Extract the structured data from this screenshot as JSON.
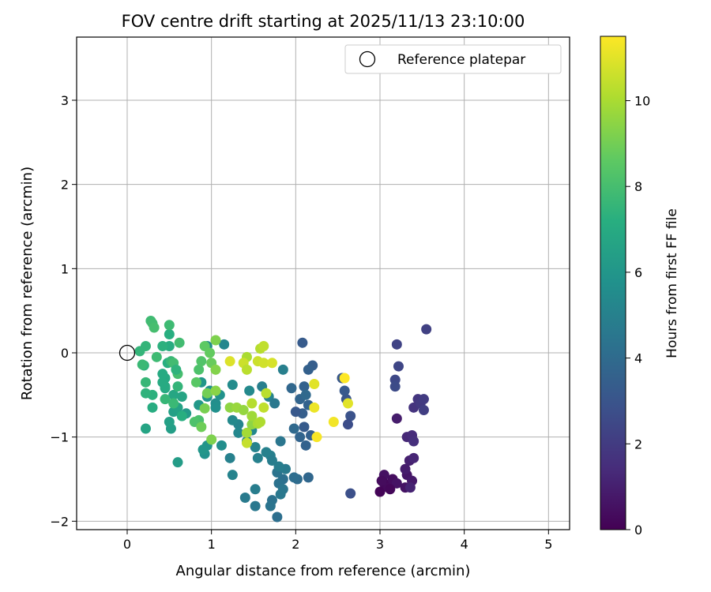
{
  "chart_data": {
    "type": "scatter",
    "title": "FOV centre drift starting at 2025/11/13 23:10:00",
    "xlabel": "Angular distance from reference (arcmin)",
    "ylabel": "Rotation from reference (arcmin)",
    "xlim": [
      -0.6,
      5.25
    ],
    "ylim": [
      -2.1,
      3.75
    ],
    "xticks": [
      0,
      1,
      2,
      3,
      4,
      5
    ],
    "yticks": [
      -2,
      -1,
      0,
      1,
      2,
      3
    ],
    "grid": true,
    "legend": {
      "placement": "top-right",
      "entries": [
        "Reference platepar"
      ]
    },
    "reference_point": {
      "x": 0,
      "y": 0
    },
    "colorbar": {
      "label": "Hours from first FF file",
      "colormap": "viridis",
      "range": [
        0,
        11.5
      ],
      "ticks": [
        0,
        2,
        4,
        6,
        8,
        10
      ]
    },
    "points": [
      [
        3.0,
        -1.65,
        0.1
      ],
      [
        3.05,
        -1.55,
        0.2
      ],
      [
        3.1,
        -1.6,
        0.3
      ],
      [
        3.15,
        -1.5,
        0.4
      ],
      [
        3.05,
        -1.45,
        0.5
      ],
      [
        3.2,
        -1.55,
        0.6
      ],
      [
        3.12,
        -1.62,
        0.2
      ],
      [
        3.02,
        -1.52,
        0.35
      ],
      [
        3.3,
        -1.6,
        0.6
      ],
      [
        3.32,
        -1.45,
        0.7
      ],
      [
        3.38,
        -1.52,
        0.8
      ],
      [
        3.3,
        -1.38,
        0.9
      ],
      [
        3.35,
        -1.28,
        1.0
      ],
      [
        3.36,
        -1.6,
        1.1
      ],
      [
        3.4,
        -1.25,
        1.2
      ],
      [
        3.32,
        -1.0,
        1.3
      ],
      [
        3.38,
        -0.98,
        1.4
      ],
      [
        3.4,
        -1.05,
        1.5
      ],
      [
        3.2,
        -0.78,
        0.9
      ],
      [
        3.4,
        -0.65,
        1.7
      ],
      [
        3.45,
        -0.55,
        1.8
      ],
      [
        3.48,
        -0.6,
        1.9
      ],
      [
        3.52,
        -0.55,
        2.0
      ],
      [
        3.52,
        -0.68,
        2.1
      ],
      [
        3.55,
        0.28,
        2.2
      ],
      [
        3.2,
        0.1,
        2.3
      ],
      [
        3.22,
        -0.16,
        2.4
      ],
      [
        3.18,
        -0.32,
        2.5
      ],
      [
        3.18,
        -0.4,
        2.6
      ],
      [
        2.65,
        -1.67,
        2.8
      ],
      [
        2.65,
        -0.75,
        2.9
      ],
      [
        2.6,
        -0.55,
        3.0
      ],
      [
        2.62,
        -0.85,
        2.7
      ],
      [
        2.55,
        -0.3,
        3.1
      ],
      [
        2.58,
        -0.45,
        3.2
      ],
      [
        2.08,
        0.12,
        3.3
      ],
      [
        2.2,
        -0.15,
        3.4
      ],
      [
        2.15,
        -0.2,
        3.5
      ],
      [
        2.1,
        -0.4,
        3.6
      ],
      [
        2.05,
        -0.55,
        3.7
      ],
      [
        1.95,
        -0.42,
        3.8
      ],
      [
        2.12,
        -0.5,
        3.9
      ],
      [
        2.15,
        -0.62,
        3.6
      ],
      [
        2.08,
        -0.72,
        3.4
      ],
      [
        2.0,
        -0.7,
        3.2
      ],
      [
        2.18,
        -0.98,
        3.5
      ],
      [
        2.1,
        -0.88,
        3.3
      ],
      [
        2.05,
        -1.0,
        3.7
      ],
      [
        1.98,
        -0.9,
        3.9
      ],
      [
        2.12,
        -1.1,
        3.6
      ],
      [
        2.15,
        -1.48,
        3.8
      ],
      [
        2.02,
        -1.5,
        4.0
      ],
      [
        1.98,
        -1.48,
        4.1
      ],
      [
        1.85,
        -1.5,
        4.2
      ],
      [
        1.8,
        -1.55,
        4.3
      ],
      [
        1.78,
        -1.42,
        4.4
      ],
      [
        1.85,
        -1.62,
        4.5
      ],
      [
        1.82,
        -1.68,
        4.6
      ],
      [
        1.88,
        -1.38,
        4.7
      ],
      [
        1.82,
        -1.05,
        4.5
      ],
      [
        1.8,
        -1.35,
        4.8
      ],
      [
        1.7,
        -1.22,
        4.9
      ],
      [
        1.65,
        -1.18,
        5.0
      ],
      [
        1.72,
        -1.28,
        4.8
      ],
      [
        1.72,
        -1.75,
        4.3
      ],
      [
        1.78,
        -1.95,
        4.2
      ],
      [
        1.7,
        -1.82,
        4.4
      ],
      [
        1.52,
        -1.82,
        4.6
      ],
      [
        1.52,
        -1.62,
        4.8
      ],
      [
        1.4,
        -1.72,
        4.7
      ],
      [
        1.55,
        -1.25,
        5.0
      ],
      [
        1.52,
        -1.12,
        5.1
      ],
      [
        1.42,
        -1.05,
        5.2
      ],
      [
        1.48,
        -0.92,
        5.3
      ],
      [
        1.6,
        -0.4,
        4.9
      ],
      [
        1.68,
        -0.52,
        5.1
      ],
      [
        1.75,
        -0.6,
        4.6
      ],
      [
        1.85,
        -0.2,
        4.9
      ],
      [
        1.45,
        -0.45,
        5.4
      ],
      [
        1.32,
        -0.85,
        5.2
      ],
      [
        1.32,
        -0.95,
        5.3
      ],
      [
        1.25,
        -0.8,
        5.4
      ],
      [
        1.22,
        -1.25,
        5.0
      ],
      [
        1.12,
        -1.1,
        5.6
      ],
      [
        1.25,
        -1.45,
        5.1
      ],
      [
        1.15,
        0.1,
        5.3
      ],
      [
        1.25,
        -0.38,
        5.5
      ],
      [
        1.05,
        -0.6,
        5.6
      ],
      [
        1.1,
        -0.5,
        5.8
      ],
      [
        0.98,
        -0.45,
        5.7
      ],
      [
        0.95,
        -1.1,
        5.9
      ],
      [
        0.92,
        -1.2,
        5.8
      ],
      [
        0.9,
        -1.15,
        6.0
      ],
      [
        0.95,
        0.08,
        5.5
      ],
      [
        0.95,
        -0.52,
        5.9
      ],
      [
        1.05,
        -0.65,
        5.7
      ],
      [
        0.88,
        -0.35,
        6.0
      ],
      [
        0.85,
        -0.62,
        6.1
      ],
      [
        0.7,
        -0.72,
        6.2
      ],
      [
        0.65,
        -0.75,
        6.3
      ],
      [
        0.6,
        -1.3,
        6.3
      ],
      [
        0.55,
        -0.7,
        6.5
      ],
      [
        0.52,
        -0.9,
        6.4
      ],
      [
        0.5,
        -0.82,
        6.5
      ],
      [
        0.6,
        -0.65,
        6.6
      ],
      [
        0.65,
        -0.52,
        6.7
      ],
      [
        0.55,
        -0.5,
        6.8
      ],
      [
        0.45,
        -0.3,
        6.9
      ],
      [
        0.42,
        -0.25,
        7.0
      ],
      [
        0.45,
        -0.42,
        6.9
      ],
      [
        0.42,
        -0.35,
        7.0
      ],
      [
        0.5,
        0.08,
        7.1
      ],
      [
        0.48,
        -0.12,
        7.2
      ],
      [
        0.5,
        0.22,
        7.2
      ],
      [
        0.42,
        0.08,
        7.3
      ],
      [
        0.45,
        -0.4,
        7.0
      ],
      [
        0.22,
        -0.9,
        6.7
      ],
      [
        0.3,
        -0.65,
        7.1
      ],
      [
        0.3,
        -0.5,
        7.3
      ],
      [
        0.22,
        -0.48,
        7.4
      ],
      [
        0.2,
        -0.15,
        7.4
      ],
      [
        0.22,
        0.08,
        7.5
      ],
      [
        0.15,
        0.02,
        7.5
      ],
      [
        0.22,
        -0.35,
        7.6
      ],
      [
        0.18,
        -0.14,
        7.7
      ],
      [
        0.28,
        0.38,
        7.8
      ],
      [
        0.3,
        0.35,
        7.9
      ],
      [
        0.32,
        0.3,
        8.0
      ],
      [
        0.5,
        0.33,
        7.8
      ],
      [
        0.62,
        0.12,
        7.9
      ],
      [
        0.45,
        -0.55,
        7.6
      ],
      [
        0.35,
        -0.05,
        7.8
      ],
      [
        0.52,
        -0.1,
        7.6
      ],
      [
        0.55,
        -0.12,
        7.9
      ],
      [
        0.6,
        -0.25,
        8.0
      ],
      [
        0.55,
        -0.6,
        7.7
      ],
      [
        0.6,
        -0.4,
        7.5
      ],
      [
        0.65,
        -0.75,
        7.2
      ],
      [
        0.58,
        -0.2,
        7.4
      ],
      [
        0.82,
        -0.35,
        8.5
      ],
      [
        0.85,
        -0.2,
        8.2
      ],
      [
        0.88,
        -0.1,
        8.3
      ],
      [
        0.92,
        0.08,
        8.6
      ],
      [
        0.98,
        0.0,
        8.7
      ],
      [
        1.0,
        -0.12,
        8.8
      ],
      [
        0.85,
        -0.8,
        8.1
      ],
      [
        0.8,
        -0.82,
        8.2
      ],
      [
        0.95,
        -0.48,
        9.0
      ],
      [
        0.92,
        -0.66,
        9.1
      ],
      [
        1.05,
        0.15,
        9.2
      ],
      [
        1.05,
        -0.2,
        9.3
      ],
      [
        1.05,
        -0.45,
        9.4
      ],
      [
        0.88,
        -0.88,
        8.9
      ],
      [
        1.0,
        -1.03,
        9.2
      ],
      [
        1.22,
        -0.65,
        9.5
      ],
      [
        1.3,
        -0.65,
        9.7
      ],
      [
        1.38,
        -0.68,
        9.6
      ],
      [
        1.48,
        -0.85,
        9.5
      ],
      [
        1.42,
        -0.95,
        9.9
      ],
      [
        1.48,
        -0.75,
        9.8
      ],
      [
        1.55,
        -0.84,
        10.0
      ],
      [
        1.48,
        -0.6,
        10.2
      ],
      [
        1.58,
        -0.82,
        10.1
      ],
      [
        1.65,
        -0.48,
        10.3
      ],
      [
        1.62,
        -0.65,
        10.4
      ],
      [
        1.42,
        -1.07,
        10.5
      ],
      [
        1.42,
        -0.05,
        10.0
      ],
      [
        1.58,
        0.05,
        10.2
      ],
      [
        1.62,
        0.08,
        10.4
      ],
      [
        1.55,
        -0.1,
        10.6
      ],
      [
        1.62,
        -0.12,
        10.7
      ],
      [
        1.72,
        -0.12,
        10.8
      ],
      [
        1.38,
        -0.12,
        10.6
      ],
      [
        1.22,
        -0.1,
        10.9
      ],
      [
        1.42,
        -0.2,
        10.3
      ],
      [
        2.22,
        -0.37,
        11.0
      ],
      [
        2.22,
        -0.65,
        11.2
      ],
      [
        2.25,
        -1.0,
        11.4
      ],
      [
        2.45,
        -0.82,
        11.3
      ],
      [
        2.62,
        -0.6,
        11.0
      ],
      [
        2.58,
        -0.3,
        11.5
      ]
    ]
  }
}
